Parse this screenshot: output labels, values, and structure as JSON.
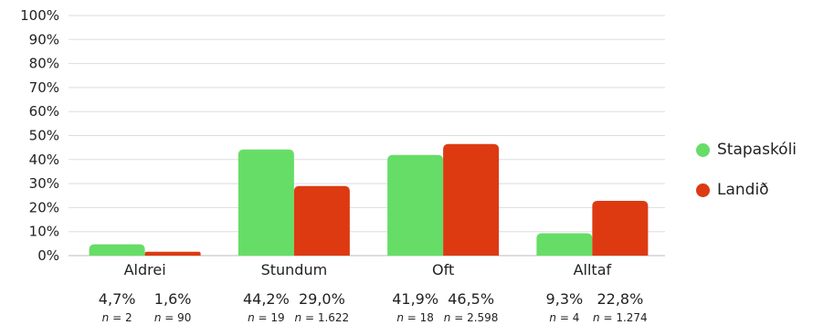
{
  "chart_data": {
    "type": "bar",
    "categories": [
      "Aldrei",
      "Stundum",
      "Oft",
      "Alltaf"
    ],
    "ylim": [
      0,
      100
    ],
    "yticks": [
      "0%",
      "10%",
      "20%",
      "30%",
      "40%",
      "50%",
      "60%",
      "70%",
      "80%",
      "90%",
      "100%"
    ],
    "grid": true,
    "legend_position": "right",
    "series": [
      {
        "name": "Stapaskóli",
        "color": "#66dd66",
        "values": [
          4.7,
          44.2,
          41.9,
          9.3
        ],
        "value_labels": [
          "4,7%",
          "44,2%",
          "41,9%",
          "9,3%"
        ],
        "n_labels": [
          "2",
          "19",
          "18",
          "4"
        ]
      },
      {
        "name": "Landið",
        "color": "#dd3a12",
        "values": [
          1.6,
          29.0,
          46.5,
          22.8
        ],
        "value_labels": [
          "1,6%",
          "29,0%",
          "46,5%",
          "22,8%"
        ],
        "n_labels": [
          "90",
          "1.622",
          "2.598",
          "1.274"
        ]
      }
    ],
    "n_prefix": "n",
    "n_sep": " = "
  }
}
